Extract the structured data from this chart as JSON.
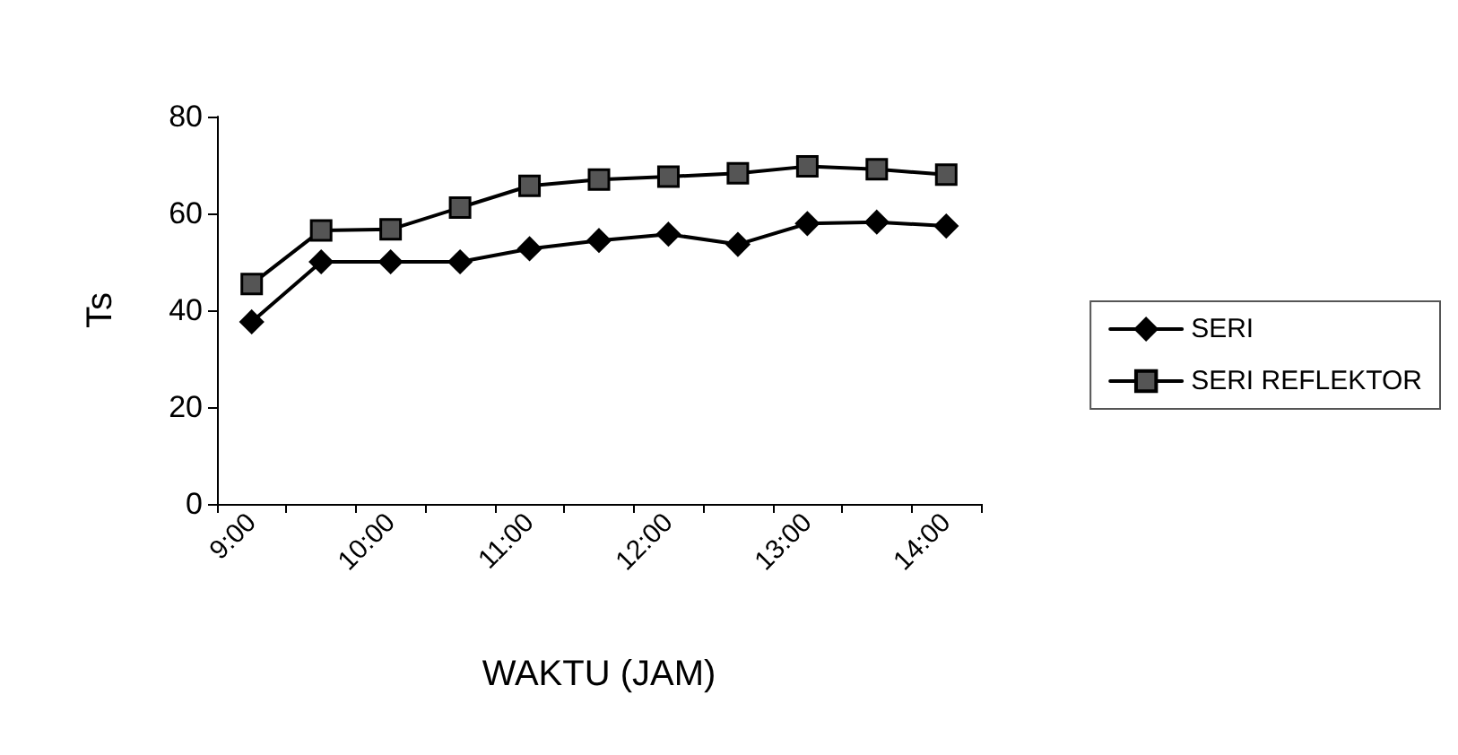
{
  "chart_data": {
    "type": "line",
    "xlabel": "WAKTU (JAM)",
    "ylabel": "Ts",
    "categories": [
      "9:00",
      null,
      "10:00",
      null,
      "11:00",
      null,
      "12:00",
      null,
      "13:00",
      null,
      "14:00"
    ],
    "series": [
      {
        "name": "SERI",
        "color": "#000000",
        "marker": "diamond",
        "values": [
          37.6,
          50,
          50,
          50,
          52.7,
          54.4,
          55.7,
          53.6,
          57.9,
          58.2,
          57.4
        ]
      },
      {
        "name": "SERI REFLEKTOR",
        "color": "#000000",
        "marker": "square",
        "values": [
          45.4,
          56.5,
          56.7,
          61.2,
          65.7,
          67,
          67.6,
          68.3,
          69.7,
          69.1,
          68
        ]
      }
    ],
    "ylim": [
      0,
      80
    ],
    "yticks": [
      0,
      20,
      40,
      60,
      80
    ],
    "grid": false,
    "legend": "right",
    "line_style": "solid"
  }
}
